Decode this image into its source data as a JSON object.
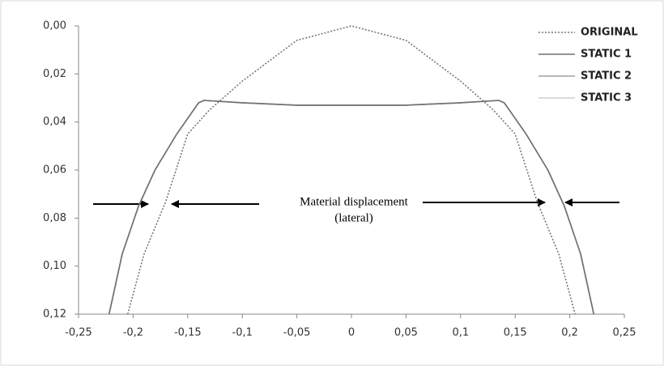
{
  "chart_data": {
    "type": "line",
    "annotations": [
      "Material displacement",
      "(lateral)"
    ],
    "xlim": [
      -0.25,
      0.25
    ],
    "xticks": [
      {
        "value": -0.25,
        "label": "-0,25"
      },
      {
        "value": -0.2,
        "label": "-0,2"
      },
      {
        "value": -0.15,
        "label": "-0,15"
      },
      {
        "value": -0.1,
        "label": "-0,1"
      },
      {
        "value": -0.05,
        "label": "-0,05"
      },
      0,
      {
        "value": 0.05,
        "label": "0,05"
      },
      {
        "value": 0.1,
        "label": "0,1"
      },
      {
        "value": 0.15,
        "label": "0,15"
      },
      {
        "value": 0.2,
        "label": "0,2"
      },
      {
        "value": 0.25,
        "label": "0,25"
      }
    ],
    "ylim": [
      0,
      0.12
    ],
    "y_reversed": true,
    "yticks": [
      {
        "value": 0,
        "label": "0,00"
      },
      {
        "value": 0.02,
        "label": "0,02"
      },
      {
        "value": 0.04,
        "label": "0,04"
      },
      {
        "value": 0.06,
        "label": "0,06"
      },
      {
        "value": 0.08,
        "label": "0,08"
      },
      {
        "value": 0.1,
        "label": "0,10"
      },
      {
        "value": 0.12,
        "label": "0,12"
      }
    ],
    "legend": "upper right",
    "series": [
      {
        "name": "ORIGINAL",
        "color": "#777777",
        "style": "dotted",
        "x": [
          -0.205,
          -0.19,
          -0.17,
          -0.15,
          -0.13,
          -0.1,
          -0.05,
          0,
          0.05,
          0.1,
          0.13,
          0.15,
          0.17,
          0.19,
          0.205
        ],
        "values": [
          0.12,
          0.095,
          0.073,
          0.045,
          0.035,
          0.023,
          0.006,
          0,
          0.006,
          0.023,
          0.035,
          0.045,
          0.073,
          0.095,
          0.12
        ]
      },
      {
        "name": "STATIC 1",
        "color": "#707070",
        "style": "solid",
        "x": [
          -0.222,
          -0.21,
          -0.195,
          -0.18,
          -0.16,
          -0.14,
          -0.135,
          -0.1,
          -0.05,
          0,
          0.05,
          0.1,
          0.135,
          0.14,
          0.16,
          0.18,
          0.195,
          0.21,
          0.222
        ],
        "values": [
          0.12,
          0.095,
          0.075,
          0.06,
          0.045,
          0.032,
          0.031,
          0.032,
          0.033,
          0.033,
          0.033,
          0.032,
          0.031,
          0.032,
          0.045,
          0.06,
          0.075,
          0.095,
          0.12
        ]
      },
      {
        "name": "STATIC 2",
        "color": "#a0a0a0",
        "style": "solid",
        "x": [
          -0.222,
          -0.21,
          -0.195,
          -0.18,
          -0.16,
          -0.14,
          -0.135,
          -0.1,
          -0.05,
          0,
          0.05,
          0.1,
          0.135,
          0.14,
          0.16,
          0.18,
          0.195,
          0.21,
          0.222
        ],
        "values": [
          0.12,
          0.095,
          0.075,
          0.06,
          0.045,
          0.032,
          0.031,
          0.032,
          0.033,
          0.033,
          0.033,
          0.032,
          0.031,
          0.032,
          0.045,
          0.06,
          0.075,
          0.095,
          0.12
        ]
      },
      {
        "name": "STATIC 3",
        "color": "#cfcfcf",
        "style": "solid",
        "x": [
          -0.222,
          -0.21,
          -0.195,
          -0.18,
          -0.16,
          -0.14,
          -0.135,
          -0.1,
          -0.05,
          0,
          0.05,
          0.1,
          0.135,
          0.14,
          0.16,
          0.18,
          0.195,
          0.21,
          0.222
        ],
        "values": [
          0.12,
          0.095,
          0.075,
          0.06,
          0.045,
          0.032,
          0.031,
          0.032,
          0.033,
          0.033,
          0.033,
          0.032,
          0.031,
          0.032,
          0.045,
          0.06,
          0.075,
          0.095,
          0.12
        ]
      }
    ]
  }
}
